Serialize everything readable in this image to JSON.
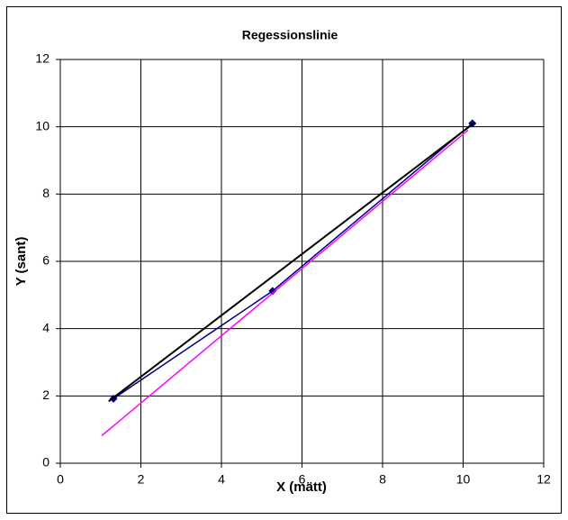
{
  "chart_data": {
    "type": "scatter",
    "title": "Regessionslinie",
    "x_label": "X (mätt)",
    "y_label": "Y (sant)",
    "xlim": [
      0,
      12
    ],
    "ylim": [
      0,
      12
    ],
    "xticks": [
      0,
      2,
      4,
      6,
      8,
      10,
      12
    ],
    "yticks": [
      0,
      2,
      4,
      6,
      8,
      10,
      12
    ],
    "grid": true,
    "series": [
      {
        "color": "#000080",
        "markers": true,
        "x": [
          1.32,
          5.27,
          10.23
        ],
        "values": [
          1.92,
          5.12,
          10.1
        ]
      },
      {
        "color": "#000000",
        "markers": false,
        "x": [
          1.2,
          10.28
        ],
        "values": [
          1.84,
          10.12
        ]
      },
      {
        "color": "#ff00ff",
        "markers": false,
        "x": [
          1.03,
          10.12
        ],
        "values": [
          0.82,
          9.9
        ]
      }
    ]
  }
}
